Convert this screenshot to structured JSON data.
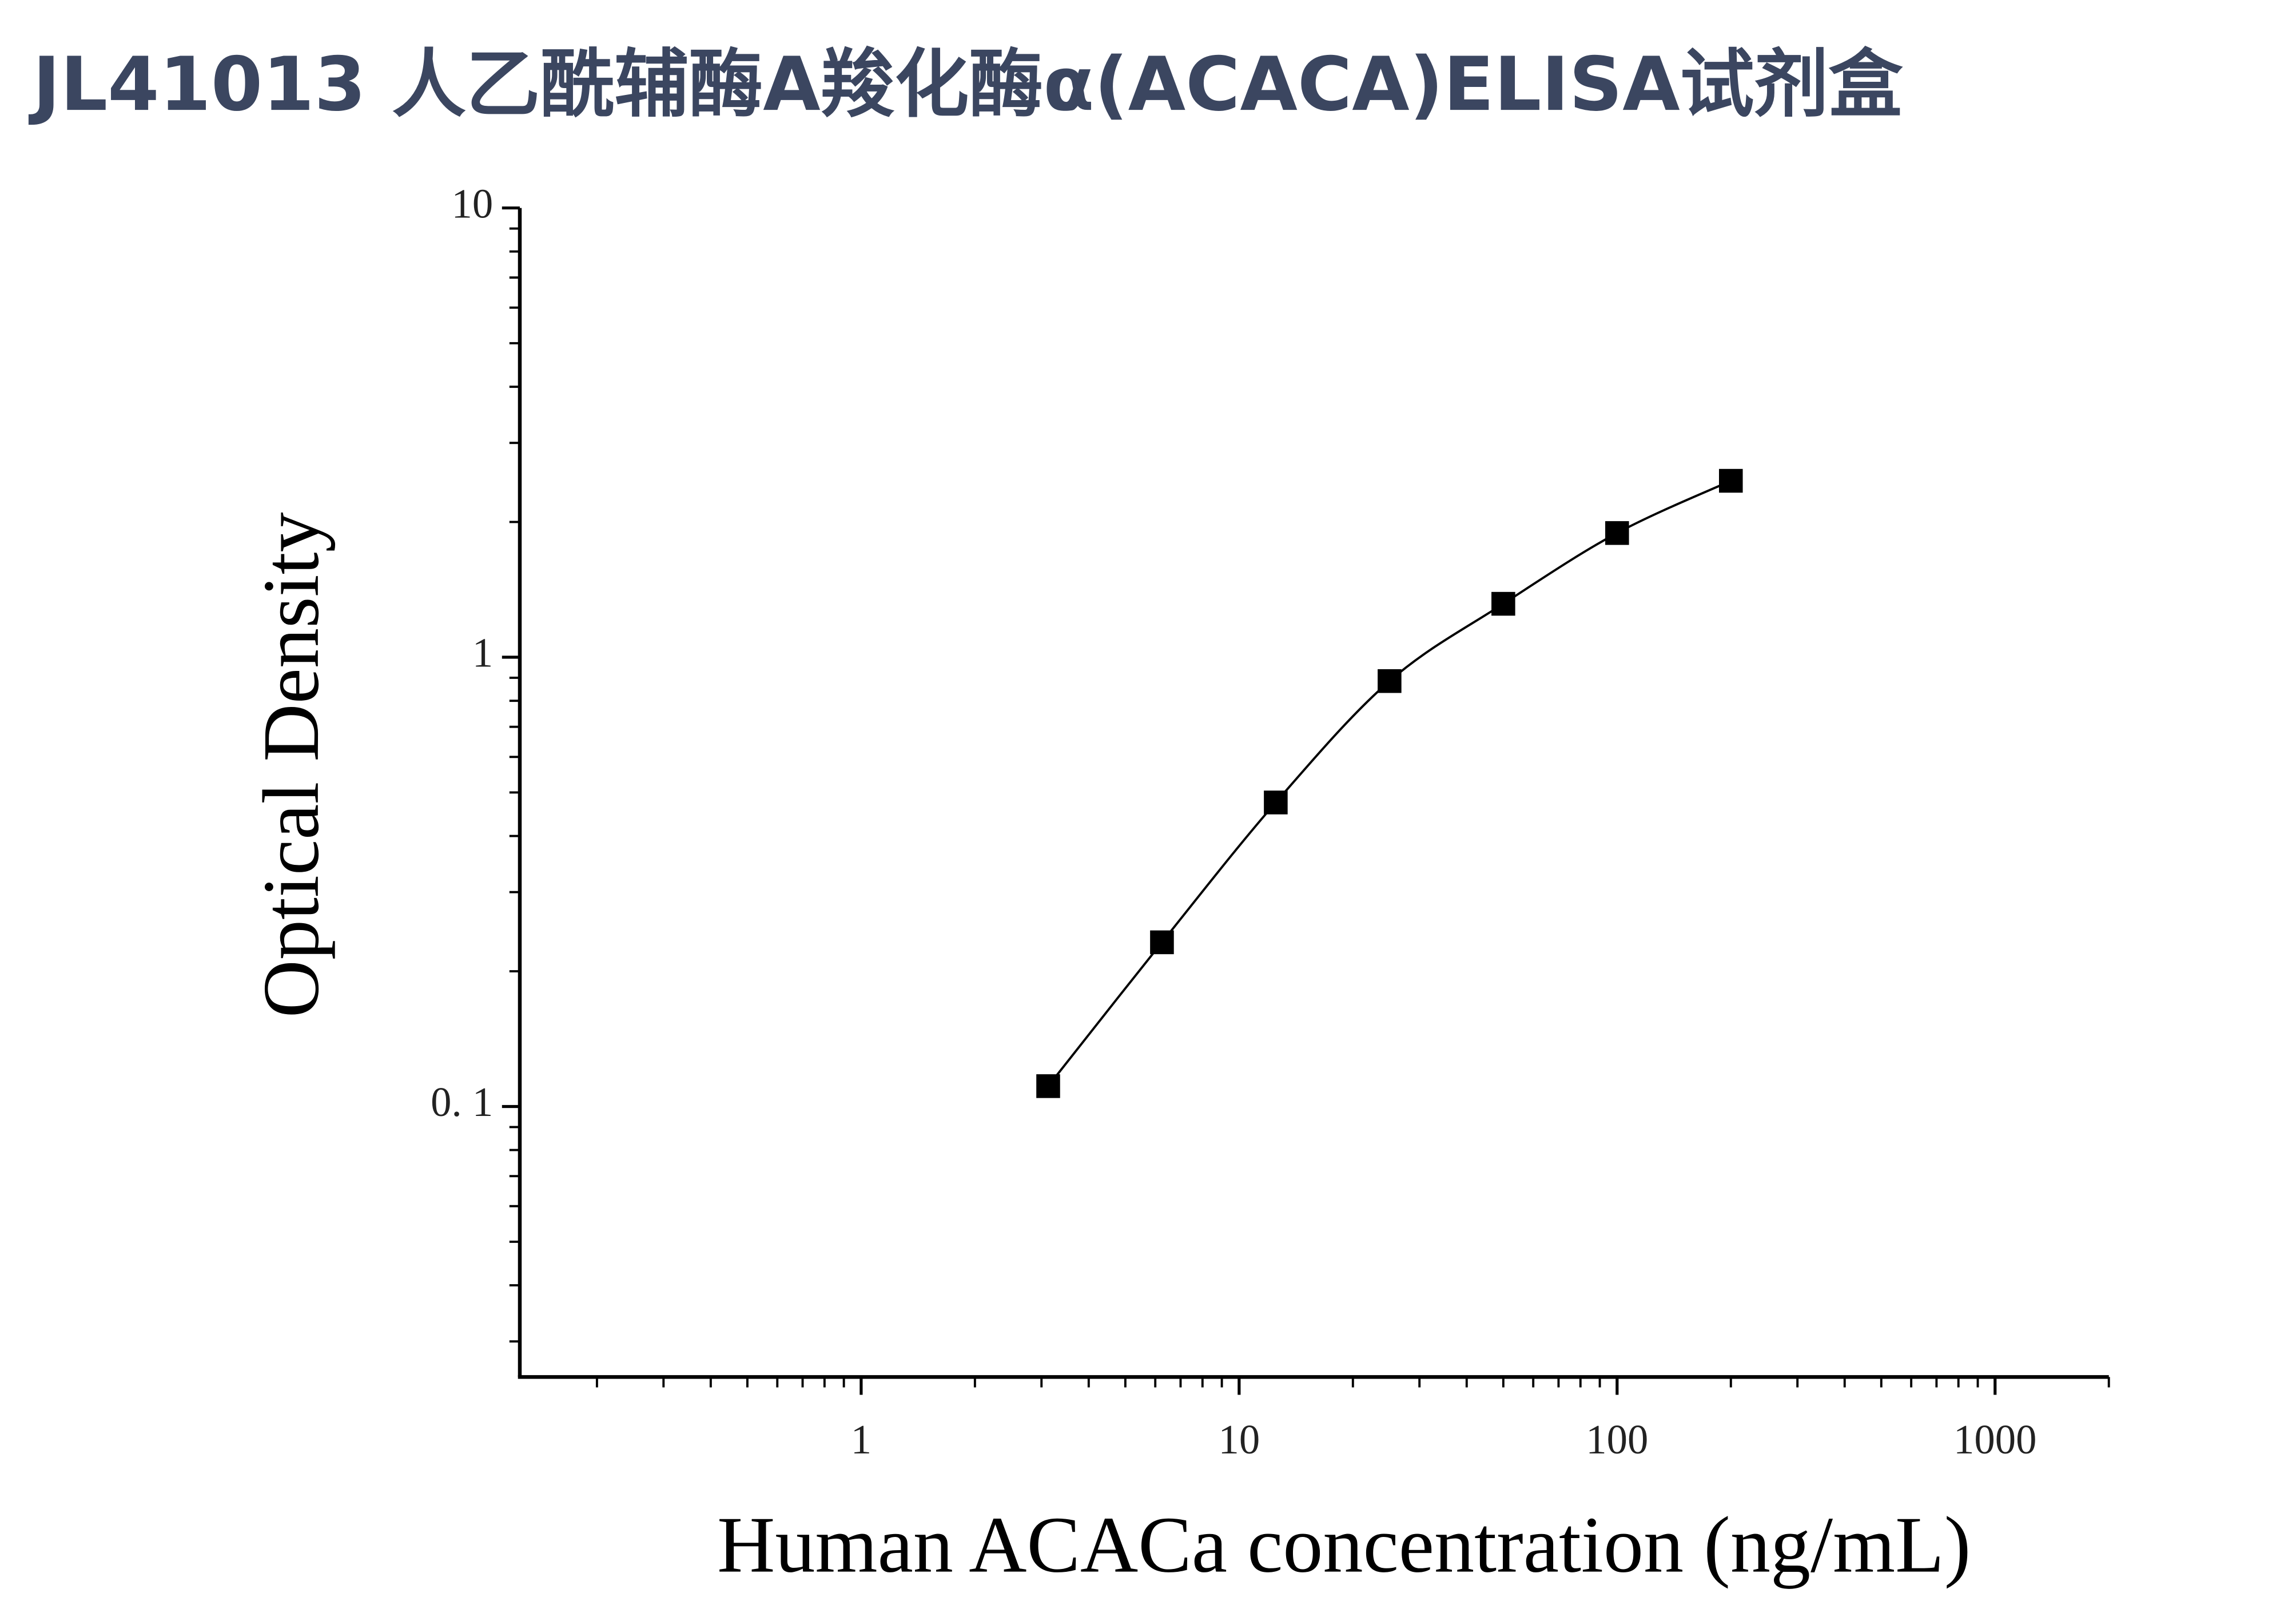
{
  "chart_data": {
    "type": "scatter",
    "title": "JL41013 人乙酰辅酶A羧化酶α(ACACA)ELISA试剂盒",
    "xlabel": "Human ACACa concentration (ng/mL)",
    "ylabel": "Optical Density",
    "xscale": "log",
    "yscale": "log",
    "xlim": [
      0.125,
      2000
    ],
    "ylim": [
      0.025,
      10
    ],
    "xticks": [
      1,
      10,
      100,
      1000
    ],
    "yticks": [
      {
        "value": 0.1,
        "label": "0. 1"
      },
      1,
      10
    ],
    "xminor_ticks": [
      0.2,
      0.3,
      0.4,
      0.5,
      0.6,
      0.7,
      0.8,
      0.9,
      2,
      3,
      4,
      5,
      6,
      7,
      8,
      9,
      20,
      30,
      40,
      50,
      60,
      70,
      80,
      90,
      200,
      300,
      400,
      500,
      600,
      700,
      800,
      900,
      2000
    ],
    "yminor_ticks": [
      0.03,
      0.04,
      0.05,
      0.06,
      0.07,
      0.08,
      0.09,
      0.2,
      0.3,
      0.4,
      0.5,
      0.6,
      0.7,
      0.8,
      0.9,
      2,
      3,
      4,
      5,
      6,
      7,
      8,
      9
    ],
    "x": [
      3.125,
      6.25,
      12.5,
      25,
      50,
      100,
      200
    ],
    "series": [
      {
        "color": "#000000",
        "values": [
          0.111,
          0.232,
          0.475,
          0.885,
          1.315,
          1.89,
          2.47
        ]
      }
    ],
    "fit_line": true
  }
}
